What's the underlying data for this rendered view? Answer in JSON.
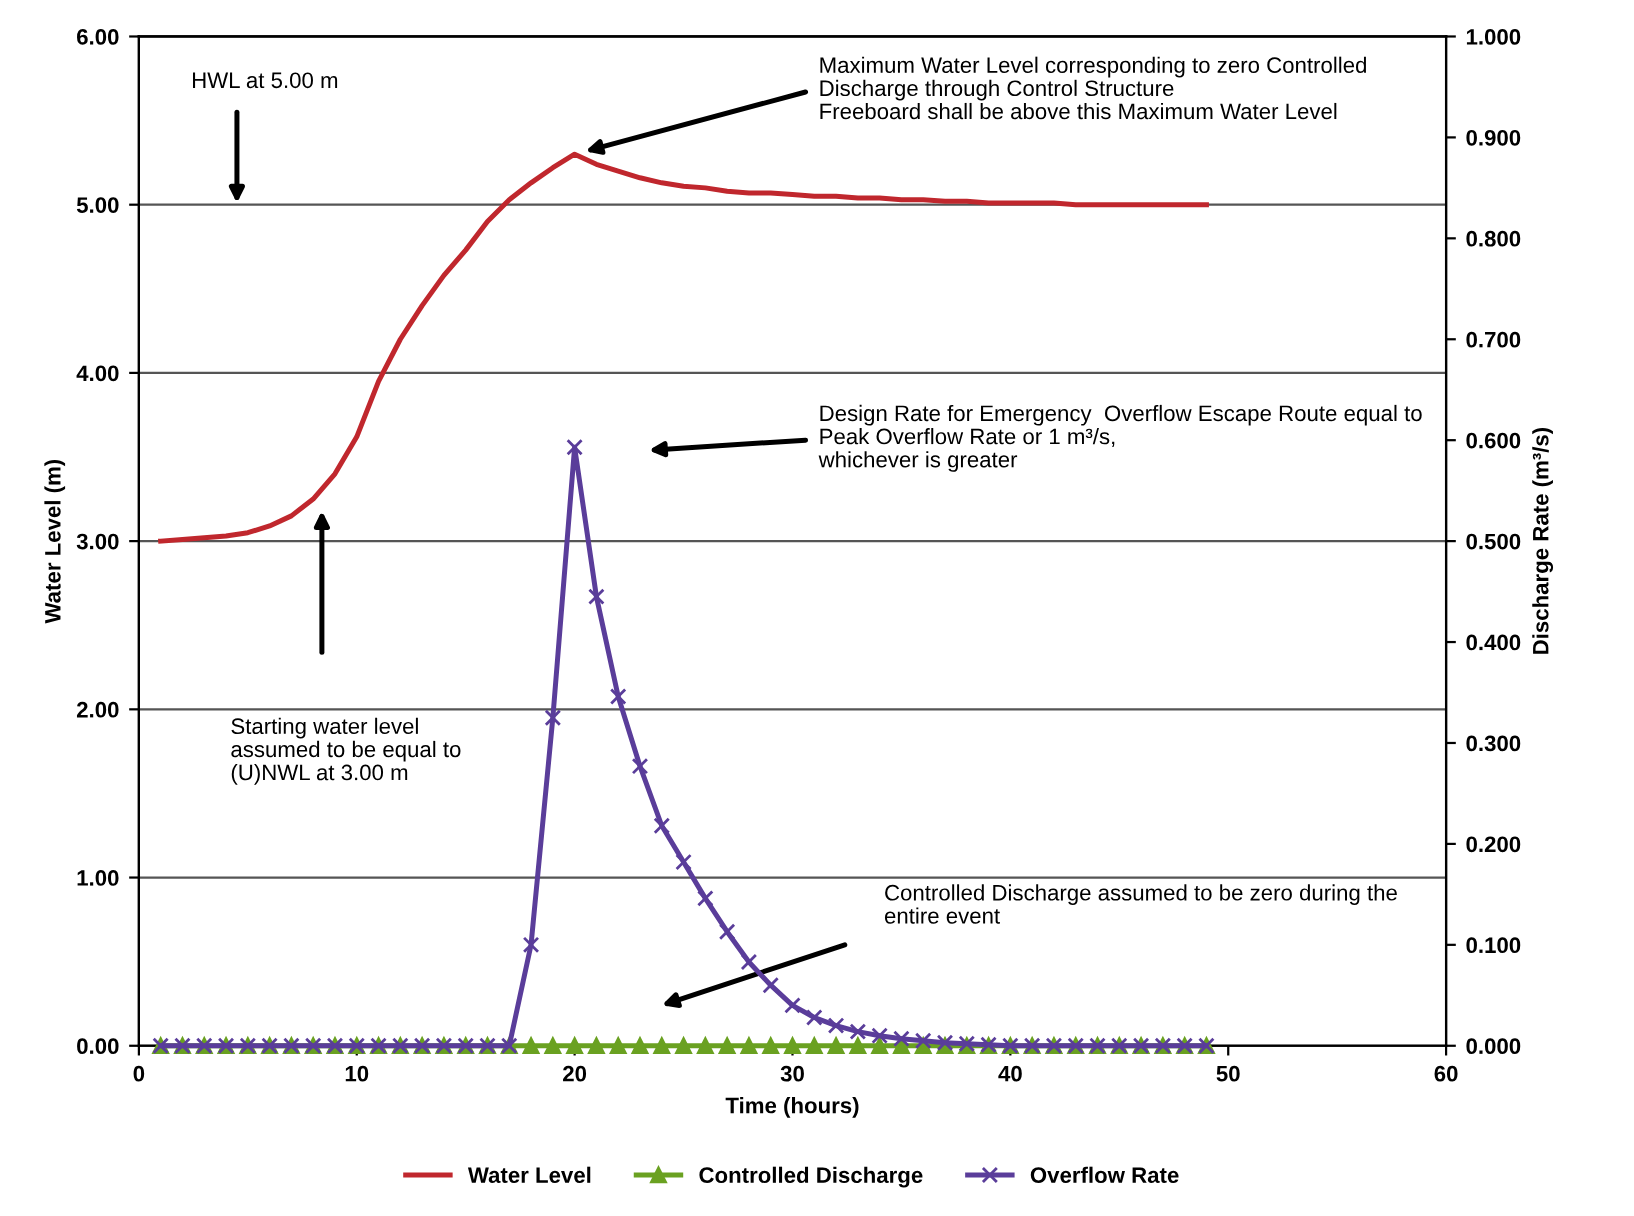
{
  "chart_data": {
    "type": "line",
    "xlabel": "Time (hours)",
    "ylabel": "Water Level (m)",
    "y2label": "Discharge Rate (m³/s)",
    "xlim": [
      0,
      60
    ],
    "xticks": [
      0,
      10,
      20,
      30,
      40,
      50,
      60
    ],
    "ylim": [
      0,
      6
    ],
    "yticks": [
      {
        "value": 0,
        "label": "0.00"
      },
      {
        "value": 1,
        "label": "1.00"
      },
      {
        "value": 2,
        "label": "2.00"
      },
      {
        "value": 3,
        "label": "3.00"
      },
      {
        "value": 4,
        "label": "4.00"
      },
      {
        "value": 5,
        "label": "5.00"
      },
      {
        "value": 6,
        "label": "6.00"
      }
    ],
    "y2lim": [
      0,
      1
    ],
    "y2ticks": [
      {
        "value": 0,
        "label": "0.000"
      },
      {
        "value": 0.1,
        "label": "0.100"
      },
      {
        "value": 0.2,
        "label": "0.200"
      },
      {
        "value": 0.3,
        "label": "0.300"
      },
      {
        "value": 0.4,
        "label": "0.400"
      },
      {
        "value": 0.5,
        "label": "0.500"
      },
      {
        "value": 0.6,
        "label": "0.600"
      },
      {
        "value": 0.7,
        "label": "0.700"
      },
      {
        "value": 0.8,
        "label": "0.800"
      },
      {
        "value": 0.9,
        "label": "0.900"
      },
      {
        "value": 1,
        "label": "1.000"
      }
    ],
    "x": [
      1,
      2,
      3,
      4,
      5,
      6,
      7,
      8,
      9,
      10,
      11,
      12,
      13,
      14,
      15,
      16,
      17,
      18,
      19,
      20,
      21,
      22,
      23,
      24,
      25,
      26,
      27,
      28,
      29,
      30,
      31,
      32,
      33,
      34,
      35,
      36,
      37,
      38,
      39,
      40,
      41,
      42,
      43,
      44,
      45,
      46,
      47,
      48,
      49
    ],
    "grid": "y",
    "legend": "bottom",
    "series": [
      {
        "name": "Water Level",
        "color": "#c0272d",
        "marker": "none",
        "values": [
          3.0,
          3.01,
          3.02,
          3.03,
          3.05,
          3.09,
          3.15,
          3.25,
          3.4,
          3.62,
          3.95,
          4.2,
          4.4,
          4.58,
          4.73,
          4.9,
          5.03,
          5.13,
          5.22,
          5.3,
          5.24,
          5.2,
          5.16,
          5.13,
          5.11,
          5.1,
          5.08,
          5.07,
          5.07,
          5.06,
          5.05,
          5.05,
          5.04,
          5.04,
          5.03,
          5.03,
          5.02,
          5.02,
          5.01,
          5.01,
          5.01,
          5.01,
          5.0,
          5.0,
          5.0,
          5.0,
          5.0,
          5.0,
          5.0
        ]
      },
      {
        "name": "Controlled Discharge",
        "color": "#6aa121",
        "marker": "triangle",
        "axis": "y2",
        "values": [
          0,
          0,
          0,
          0,
          0,
          0,
          0,
          0,
          0,
          0,
          0,
          0,
          0,
          0,
          0,
          0,
          0,
          0,
          0,
          0,
          0,
          0,
          0,
          0,
          0,
          0,
          0,
          0,
          0,
          0,
          0,
          0,
          0,
          0,
          0,
          0,
          0,
          0,
          0,
          0,
          0,
          0,
          0,
          0,
          0,
          0,
          0,
          0,
          0
        ]
      },
      {
        "name": "Overflow Rate",
        "color": "#5a3d9a",
        "marker": "cross",
        "axis": "y2",
        "values": [
          0,
          0,
          0,
          0,
          0,
          0,
          0,
          0,
          0,
          0,
          0,
          0,
          0,
          0,
          0,
          0,
          0,
          0.1,
          0.325,
          0.593,
          0.445,
          0.346,
          0.277,
          0.218,
          0.182,
          0.146,
          0.113,
          0.083,
          0.06,
          0.04,
          0.028,
          0.02,
          0.014,
          0.01,
          0.007,
          0.005,
          0.003,
          0.002,
          0.001,
          0,
          0,
          0,
          0,
          0,
          0,
          0,
          0,
          0,
          0
        ]
      }
    ],
    "annotations": [
      "HWL at 5.00 m",
      {
        "text": "Maximum Water Level corresponding to zero Controlled\nDischarge through Control Structure\nFreeboard shall be above this Maximum Water Level",
        "x": 20,
        "y": 5.3
      },
      "Design Rate for Emergency  Overflow Escape Route equal to\nPeak Overflow Rate or 1 m³/s,\nwhichever is greater",
      "Starting water level\nassumed to be equal to\n(U)NWL at 3.00 m",
      "Controlled Discharge assumed to be zero during the\nentire event"
    ]
  }
}
